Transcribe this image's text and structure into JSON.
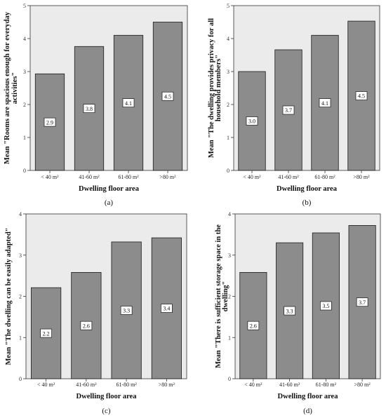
{
  "colors": {
    "plot_background": "#ebebeb",
    "bar_fill": "#8c8c8c",
    "bar_stroke": "#1a1a1a",
    "label_box": "#ffffff",
    "axis": "#333333"
  },
  "chart_data": [
    {
      "type": "bar",
      "categories": [
        "< 40 m²",
        "41-60 m²",
        "61-80 m²",
        ">80 m²"
      ],
      "values": [
        2.93,
        3.76,
        4.1,
        4.5
      ],
      "data_labels": [
        "2.9",
        "3.8",
        "4.1",
        "4.5"
      ],
      "ylabel_lines": [
        "Mean \"Rooms are spacious enough for everyday",
        "activities\""
      ],
      "xlabel": "Dwelling floor area",
      "ylim": [
        0,
        5
      ],
      "yticks": [
        "0",
        "1",
        "2",
        "3",
        "4",
        "5"
      ],
      "panel_label": "(a)",
      "grid": false
    },
    {
      "type": "bar",
      "categories": [
        "< 40 m²",
        "41-60 m²",
        "61-80 m²",
        ">80 m²"
      ],
      "values": [
        3.0,
        3.66,
        4.1,
        4.53
      ],
      "data_labels": [
        "3.0",
        "3.7",
        "4.1",
        "4.5"
      ],
      "ylabel_lines": [
        "Mean \"The dwelling provides privacy for all",
        "household members\""
      ],
      "xlabel": "Dwelling floor area",
      "ylim": [
        0,
        5
      ],
      "yticks": [
        "0",
        "1",
        "2",
        "3",
        "4",
        "5"
      ],
      "panel_label": "(b)",
      "grid": false
    },
    {
      "type": "bar",
      "categories": [
        "< 40 m²",
        "41-60 m²",
        "61-80 m²",
        ">80 m²"
      ],
      "values": [
        2.21,
        2.58,
        3.32,
        3.42
      ],
      "data_labels": [
        "2.2",
        "2.6",
        "3.3",
        "3.4"
      ],
      "ylabel_lines": [
        "Mean \"The dwelling can be easily adapted\""
      ],
      "xlabel": "Dwelling floor area",
      "ylim": [
        0,
        4
      ],
      "yticks": [
        "0",
        "1",
        "2",
        "3",
        "4"
      ],
      "panel_label": "(c)",
      "grid": false
    },
    {
      "type": "bar",
      "categories": [
        "< 40 m²",
        "41-60 m²",
        "61-80 m²",
        ">80 m²"
      ],
      "values": [
        2.58,
        3.3,
        3.54,
        3.72
      ],
      "data_labels": [
        "2.6",
        "3.3",
        "3.5",
        "3.7"
      ],
      "ylabel_lines": [
        "Mean \"There is sufficient storage space in the",
        "dwelling\""
      ],
      "xlabel": "Dwelling floor area",
      "ylim": [
        0,
        4
      ],
      "yticks": [
        "0",
        "1",
        "2",
        "3",
        "4"
      ],
      "panel_label": "(d)",
      "grid": false
    }
  ]
}
